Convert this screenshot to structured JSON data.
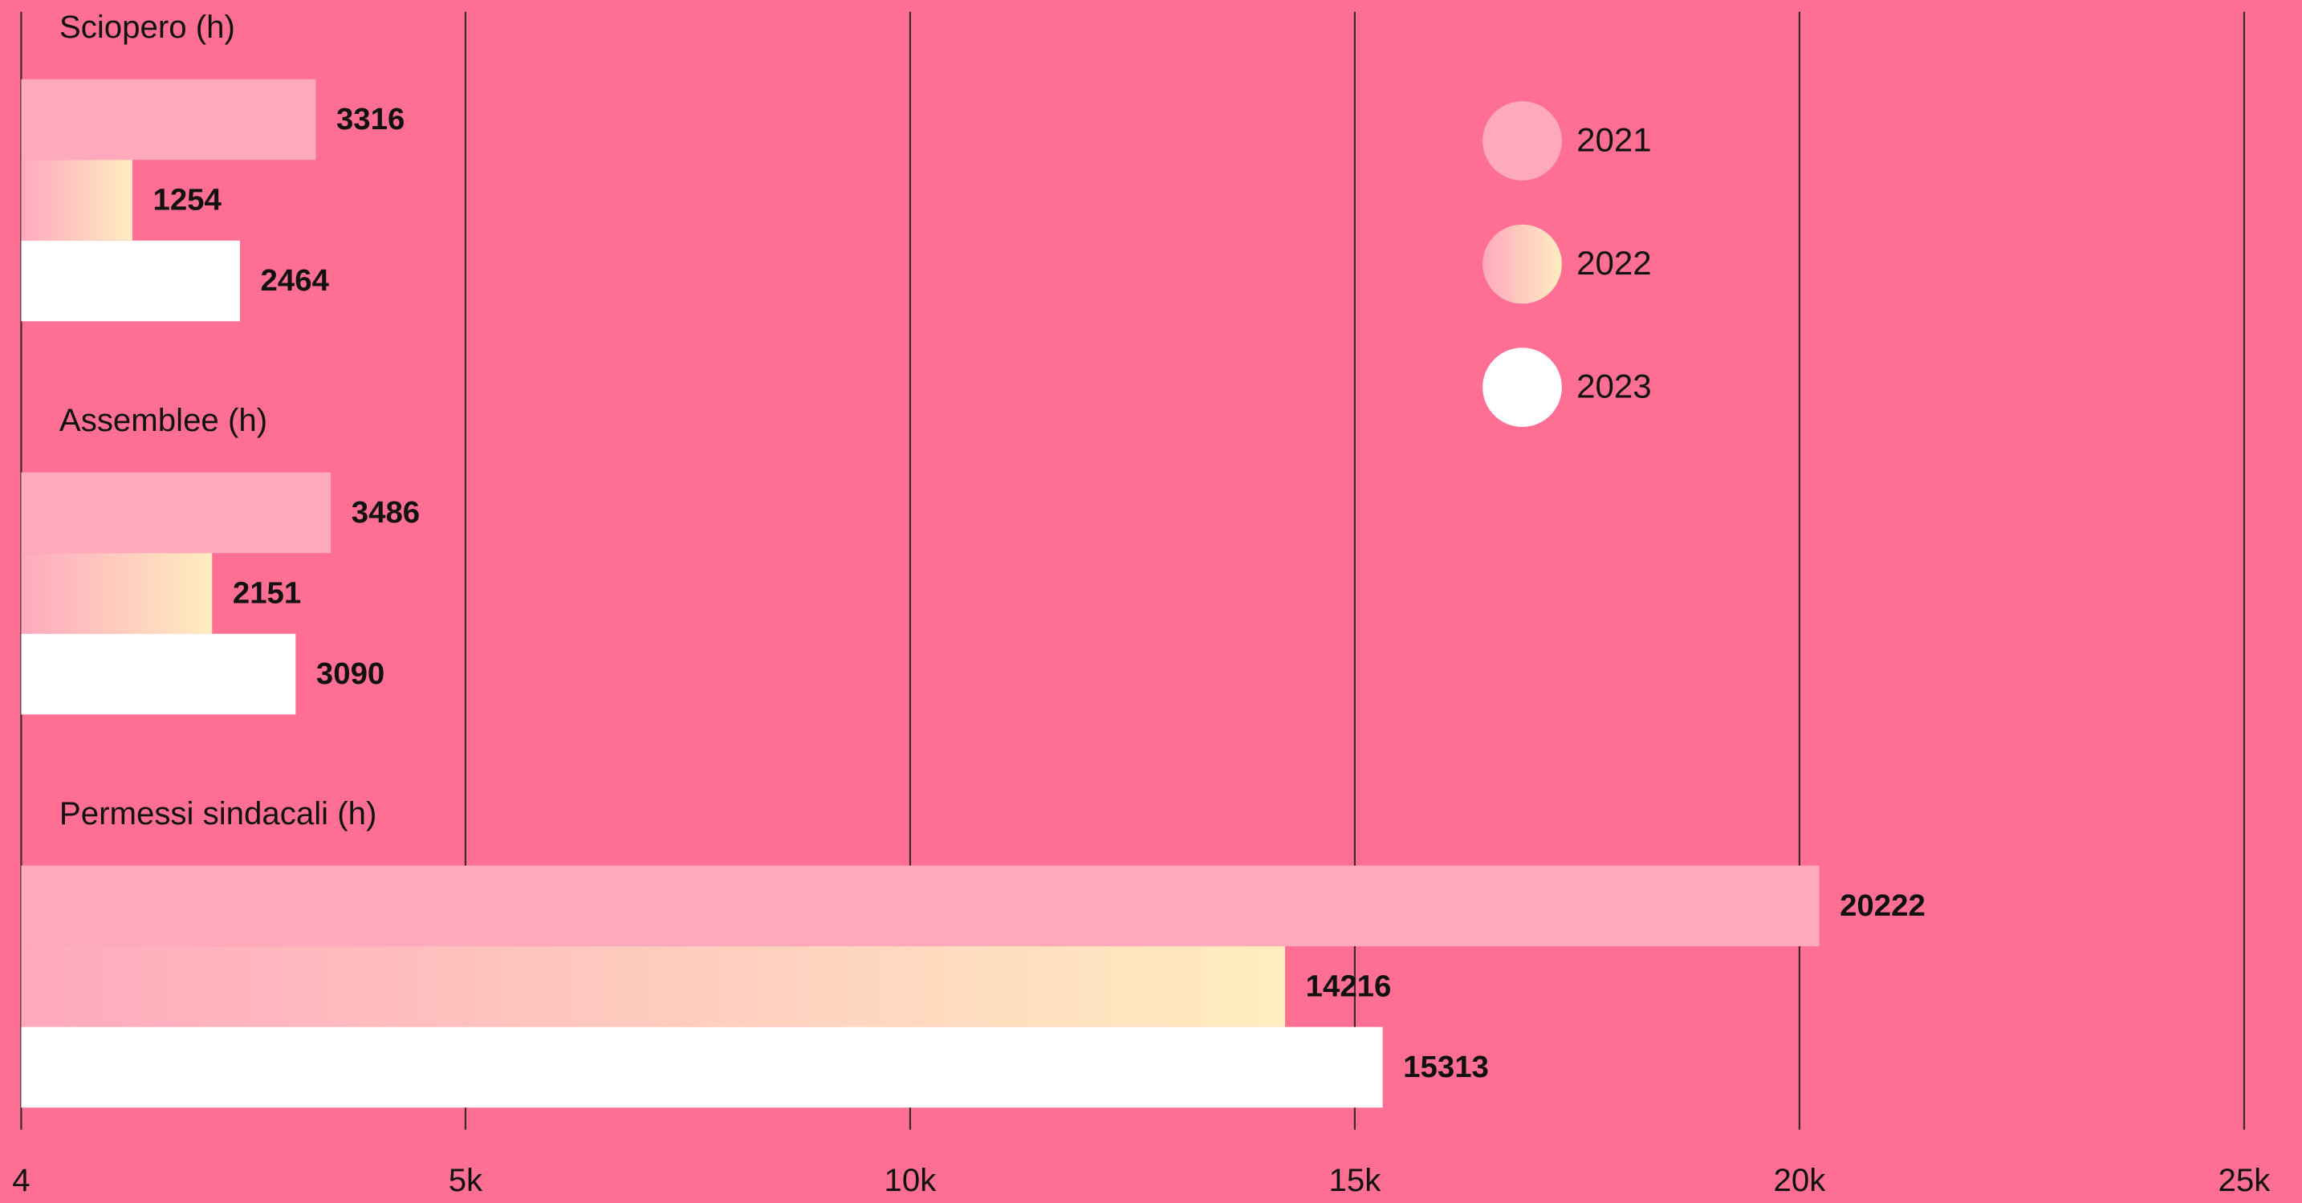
{
  "chart_data": {
    "type": "bar",
    "orientation": "horizontal",
    "categories": [
      "Sciopero (h)",
      "Assemblee (h)",
      "Permessi sindacali (h)"
    ],
    "series": [
      {
        "name": "2021",
        "color": "#ffa9bd",
        "values": [
          3316,
          3486,
          20222
        ]
      },
      {
        "name": "2022",
        "color": "#ffedc0",
        "gradient": [
          "#ffa9bd",
          "#ffedc0"
        ],
        "values": [
          1254,
          2151,
          14216
        ]
      },
      {
        "name": "2023",
        "color": "#ffffff",
        "values": [
          2464,
          3090,
          15313
        ]
      }
    ],
    "xlim": [
      4,
      25000
    ],
    "xticks": [
      4,
      {
        "value": 5000,
        "label": "5k"
      },
      {
        "value": 10000,
        "label": "10k"
      },
      {
        "value": 15000,
        "label": "15k"
      },
      {
        "value": 20000,
        "label": "20k"
      },
      {
        "value": 25000,
        "label": "25k"
      }
    ],
    "grid": true,
    "legend": "upper right",
    "background": "#ff6f93"
  }
}
